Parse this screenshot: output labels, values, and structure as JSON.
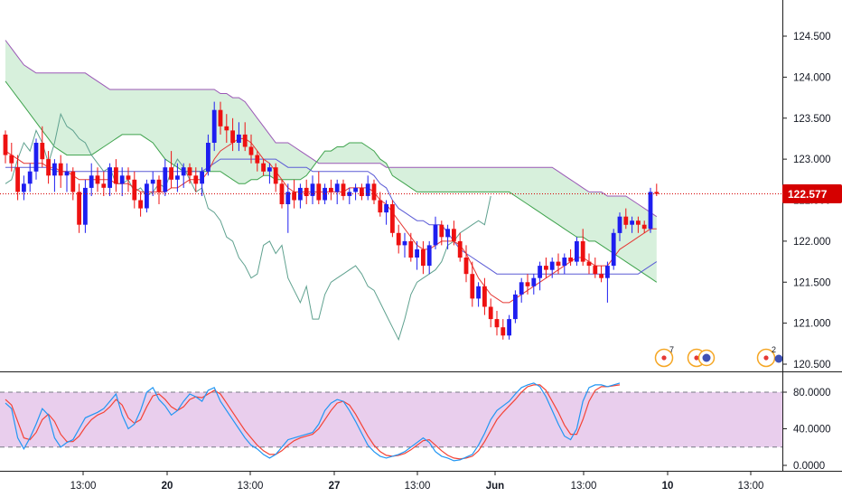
{
  "price_axis": {
    "ticks": [
      "124.500",
      "124.000",
      "123.500",
      "123.000",
      "122.500",
      "122.000",
      "121.500",
      "121.000",
      "120.500"
    ],
    "last_price": "122.577",
    "last_price_color": "#d50000"
  },
  "oscillator_axis": {
    "ticks": [
      "80.0000",
      "40.0000",
      "0.0000"
    ]
  },
  "time_axis": {
    "labels": [
      "13:00",
      "20",
      "13:00",
      "27",
      "13:00",
      "Jun",
      "13:00",
      "10",
      "13:00"
    ]
  },
  "events": [
    {
      "icon": "event-marker-icon",
      "count": "7"
    },
    {
      "icon": "event-marker-icon",
      "count": ""
    },
    {
      "icon": "event-marker-icon",
      "count": "2"
    }
  ],
  "colors": {
    "bull": "#1e1ef0",
    "bear": "#ee1111",
    "cloud_fill": "#b7e4bf",
    "cloud_upper": "#9b59b6",
    "cloud_lower": "#3fa34d",
    "tenkan": "#e53935",
    "kijun": "#5c5cd6",
    "chikou": "#5fa18f",
    "stoch_k": "#2196f3",
    "stoch_d": "#f44336",
    "stoch_band": "#e1bee7"
  },
  "chart_data": {
    "type": "candlestick",
    "price_range": [
      120.45,
      124.8
    ],
    "oscillator_range": [
      -3,
      101
    ],
    "oscillator_levels": [
      80,
      20
    ],
    "candles": [
      [
        123.3,
        123.35,
        122.95,
        123.05
      ],
      [
        123.05,
        123.2,
        122.85,
        122.95
      ],
      [
        122.9,
        123.05,
        122.5,
        122.6
      ],
      [
        122.6,
        122.8,
        122.5,
        122.7
      ],
      [
        122.7,
        122.95,
        122.6,
        122.85
      ],
      [
        122.85,
        123.25,
        122.75,
        123.2
      ],
      [
        123.2,
        123.4,
        122.9,
        123.0
      ],
      [
        123.0,
        123.1,
        122.7,
        122.8
      ],
      [
        122.8,
        123.0,
        122.6,
        122.95
      ],
      [
        122.95,
        123.05,
        122.65,
        122.8
      ],
      [
        122.8,
        122.95,
        122.6,
        122.85
      ],
      [
        122.85,
        122.9,
        122.5,
        122.6
      ],
      [
        122.6,
        122.7,
        122.1,
        122.2
      ],
      [
        122.2,
        122.75,
        122.1,
        122.65
      ],
      [
        122.65,
        122.95,
        122.55,
        122.8
      ],
      [
        122.8,
        122.9,
        122.6,
        122.7
      ],
      [
        122.7,
        122.85,
        122.55,
        122.65
      ],
      [
        122.65,
        122.95,
        122.55,
        122.9
      ],
      [
        122.9,
        123.0,
        122.6,
        122.7
      ],
      [
        122.7,
        122.9,
        122.55,
        122.8
      ],
      [
        122.8,
        122.9,
        122.6,
        122.75
      ],
      [
        122.75,
        122.85,
        122.4,
        122.5
      ],
      [
        122.5,
        122.6,
        122.3,
        122.4
      ],
      [
        122.4,
        122.75,
        122.35,
        122.7
      ],
      [
        122.7,
        122.85,
        122.55,
        122.75
      ],
      [
        122.75,
        122.8,
        122.45,
        122.6
      ],
      [
        122.6,
        123.0,
        122.55,
        122.9
      ],
      [
        122.9,
        123.1,
        122.65,
        122.75
      ],
      [
        122.75,
        122.95,
        122.6,
        122.8
      ],
      [
        122.8,
        122.95,
        122.65,
        122.9
      ],
      [
        122.9,
        122.95,
        122.7,
        122.8
      ],
      [
        122.8,
        122.9,
        122.6,
        122.7
      ],
      [
        122.7,
        122.9,
        122.55,
        122.85
      ],
      [
        122.85,
        123.3,
        122.8,
        123.2
      ],
      [
        123.2,
        123.7,
        123.1,
        123.6
      ],
      [
        123.6,
        123.7,
        123.3,
        123.4
      ],
      [
        123.4,
        123.55,
        123.2,
        123.35
      ],
      [
        123.35,
        123.5,
        123.1,
        123.2
      ],
      [
        123.2,
        123.45,
        123.1,
        123.3
      ],
      [
        123.3,
        123.45,
        123.1,
        123.15
      ],
      [
        123.15,
        123.3,
        122.95,
        123.05
      ],
      [
        123.05,
        123.1,
        122.85,
        122.95
      ],
      [
        122.95,
        123.0,
        122.8,
        122.85
      ],
      [
        122.85,
        122.95,
        122.7,
        122.9
      ],
      [
        122.9,
        122.95,
        122.6,
        122.7
      ],
      [
        122.7,
        122.75,
        122.4,
        122.45
      ],
      [
        122.45,
        122.7,
        122.1,
        122.6
      ],
      [
        122.6,
        122.75,
        122.4,
        122.5
      ],
      [
        122.5,
        122.7,
        122.4,
        122.65
      ],
      [
        122.65,
        122.75,
        122.45,
        122.55
      ],
      [
        122.55,
        122.8,
        122.45,
        122.7
      ],
      [
        122.7,
        122.85,
        122.45,
        122.5
      ],
      [
        122.5,
        122.7,
        122.45,
        122.65
      ],
      [
        122.65,
        122.75,
        122.5,
        122.6
      ],
      [
        122.6,
        122.75,
        122.45,
        122.7
      ],
      [
        122.7,
        122.75,
        122.5,
        122.55
      ],
      [
        122.55,
        122.65,
        122.45,
        122.6
      ],
      [
        122.6,
        122.7,
        122.5,
        122.65
      ],
      [
        122.65,
        122.7,
        122.5,
        122.55
      ],
      [
        122.55,
        122.8,
        122.5,
        122.7
      ],
      [
        122.7,
        122.75,
        122.45,
        122.5
      ],
      [
        122.5,
        122.6,
        122.3,
        122.35
      ],
      [
        122.35,
        122.5,
        122.2,
        122.45
      ],
      [
        122.45,
        122.5,
        122.05,
        122.1
      ],
      [
        122.1,
        122.2,
        121.85,
        121.95
      ],
      [
        121.95,
        122.1,
        121.8,
        122.0
      ],
      [
        122.0,
        122.1,
        121.75,
        121.8
      ],
      [
        121.8,
        122.0,
        121.65,
        121.9
      ],
      [
        121.9,
        122.0,
        121.6,
        121.7
      ],
      [
        121.7,
        122.0,
        121.6,
        121.95
      ],
      [
        121.95,
        122.3,
        121.9,
        122.2
      ],
      [
        122.2,
        122.25,
        121.95,
        122.05
      ],
      [
        122.05,
        122.2,
        121.9,
        122.15
      ],
      [
        122.15,
        122.25,
        121.95,
        122.0
      ],
      [
        122.0,
        122.1,
        121.75,
        121.8
      ],
      [
        121.8,
        121.95,
        121.5,
        121.6
      ],
      [
        121.6,
        121.75,
        121.2,
        121.3
      ],
      [
        121.3,
        121.5,
        121.2,
        121.45
      ],
      [
        121.45,
        121.55,
        121.1,
        121.2
      ],
      [
        121.2,
        121.3,
        120.95,
        121.05
      ],
      [
        121.05,
        121.15,
        120.85,
        120.95
      ],
      [
        120.95,
        121.05,
        120.8,
        120.85
      ],
      [
        120.85,
        121.1,
        120.8,
        121.05
      ],
      [
        121.05,
        121.4,
        121.0,
        121.35
      ],
      [
        121.35,
        121.55,
        121.25,
        121.5
      ],
      [
        121.5,
        121.6,
        121.35,
        121.45
      ],
      [
        121.45,
        121.6,
        121.35,
        121.55
      ],
      [
        121.55,
        121.75,
        121.4,
        121.7
      ],
      [
        121.7,
        121.8,
        121.55,
        121.65
      ],
      [
        121.65,
        121.8,
        121.55,
        121.75
      ],
      [
        121.75,
        121.85,
        121.6,
        121.7
      ],
      [
        121.7,
        121.85,
        121.6,
        121.8
      ],
      [
        121.8,
        121.9,
        121.7,
        121.75
      ],
      [
        121.75,
        122.05,
        121.7,
        122.0
      ],
      [
        122.0,
        122.15,
        121.7,
        121.75
      ],
      [
        121.75,
        121.85,
        121.6,
        121.7
      ],
      [
        121.7,
        121.8,
        121.55,
        121.6
      ],
      [
        121.6,
        121.7,
        121.5,
        121.55
      ],
      [
        121.55,
        121.75,
        121.25,
        121.7
      ],
      [
        121.7,
        122.15,
        121.65,
        122.1
      ],
      [
        122.1,
        122.35,
        122.0,
        122.3
      ],
      [
        122.3,
        122.4,
        122.15,
        122.2
      ],
      [
        122.2,
        122.3,
        122.1,
        122.25
      ],
      [
        122.25,
        122.3,
        122.1,
        122.2
      ],
      [
        122.2,
        122.25,
        122.1,
        122.15
      ],
      [
        122.15,
        122.65,
        122.1,
        122.6
      ],
      [
        122.6,
        122.7,
        122.55,
        122.577
      ]
    ],
    "tenkan": [
      123.1,
      123.05,
      123.0,
      122.95,
      122.95,
      122.95,
      122.95,
      122.9,
      122.9,
      122.85,
      122.85,
      122.8,
      122.75,
      122.75,
      122.75,
      122.75,
      122.75,
      122.75,
      122.7,
      122.7,
      122.7,
      122.65,
      122.6,
      122.6,
      122.6,
      122.6,
      122.6,
      122.65,
      122.65,
      122.7,
      122.75,
      122.75,
      122.75,
      122.85,
      123.0,
      123.1,
      123.15,
      123.2,
      123.25,
      123.25,
      123.2,
      123.1,
      123.0,
      122.95,
      122.85,
      122.75,
      122.65,
      122.6,
      122.6,
      122.6,
      122.6,
      122.6,
      122.6,
      122.6,
      122.6,
      122.6,
      122.65,
      122.65,
      122.65,
      122.65,
      122.6,
      122.5,
      122.45,
      122.35,
      122.25,
      122.15,
      122.05,
      121.95,
      121.9,
      121.9,
      121.95,
      122.0,
      122.0,
      122.0,
      121.95,
      121.85,
      121.7,
      121.55,
      121.45,
      121.35,
      121.3,
      121.25,
      121.25,
      121.3,
      121.35,
      121.4,
      121.45,
      121.5,
      121.55,
      121.6,
      121.65,
      121.7,
      121.75,
      121.8,
      121.8,
      121.75,
      121.7,
      121.7,
      121.7,
      121.8,
      121.9,
      121.95,
      122.0,
      122.05,
      122.1,
      122.15,
      122.15
    ],
    "kijun": [
      122.9,
      122.9,
      122.9,
      122.9,
      122.9,
      122.9,
      122.9,
      122.9,
      122.85,
      122.85,
      122.85,
      122.85,
      122.85,
      122.85,
      122.85,
      122.85,
      122.85,
      122.85,
      122.85,
      122.85,
      122.85,
      122.85,
      122.85,
      122.85,
      122.85,
      122.85,
      122.85,
      122.85,
      122.85,
      122.85,
      122.85,
      122.85,
      122.85,
      122.9,
      122.95,
      123.0,
      123.0,
      123.0,
      123.0,
      123.0,
      123.0,
      123.0,
      123.0,
      123.0,
      123.0,
      122.95,
      122.9,
      122.9,
      122.9,
      122.9,
      122.85,
      122.85,
      122.85,
      122.85,
      122.85,
      122.85,
      122.85,
      122.85,
      122.85,
      122.85,
      122.8,
      122.7,
      122.65,
      122.5,
      122.4,
      122.35,
      122.3,
      122.25,
      122.25,
      122.2,
      122.2,
      122.2,
      122.1,
      122.0,
      121.9,
      121.85,
      121.8,
      121.75,
      121.7,
      121.65,
      121.6,
      121.6,
      121.6,
      121.6,
      121.6,
      121.6,
      121.6,
      121.6,
      121.6,
      121.6,
      121.6,
      121.6,
      121.6,
      121.6,
      121.6,
      121.6,
      121.6,
      121.6,
      121.6,
      121.6,
      121.6,
      121.6,
      121.6,
      121.6,
      121.65,
      121.7,
      121.75
    ],
    "cloud_upper": [
      124.45,
      124.35,
      124.25,
      124.15,
      124.1,
      124.05,
      124.05,
      124.05,
      124.05,
      124.05,
      124.05,
      124.05,
      124.05,
      124.05,
      124.0,
      123.95,
      123.9,
      123.85,
      123.85,
      123.85,
      123.85,
      123.85,
      123.85,
      123.85,
      123.85,
      123.85,
      123.85,
      123.85,
      123.85,
      123.85,
      123.85,
      123.85,
      123.85,
      123.85,
      123.85,
      123.8,
      123.8,
      123.75,
      123.75,
      123.7,
      123.6,
      123.5,
      123.4,
      123.3,
      123.2,
      123.2,
      123.2,
      123.15,
      123.1,
      123.05,
      123.0,
      122.95,
      122.95,
      122.95,
      122.95,
      122.95,
      122.95,
      122.95,
      122.95,
      122.95,
      122.95,
      122.95,
      122.9,
      122.9,
      122.9,
      122.9,
      122.9,
      122.9,
      122.9,
      122.9,
      122.9,
      122.9,
      122.9,
      122.9,
      122.9,
      122.9,
      122.9,
      122.9,
      122.9,
      122.9,
      122.9,
      122.9,
      122.9,
      122.9,
      122.9,
      122.9,
      122.9,
      122.9,
      122.9,
      122.9,
      122.85,
      122.8,
      122.75,
      122.7,
      122.65,
      122.6,
      122.6,
      122.6,
      122.55,
      122.55,
      122.55,
      122.55,
      122.5,
      122.45,
      122.4,
      122.35,
      122.3
    ],
    "cloud_lower": [
      123.95,
      123.85,
      123.75,
      123.65,
      123.55,
      123.45,
      123.35,
      123.25,
      123.15,
      123.1,
      123.05,
      123.05,
      123.05,
      123.05,
      123.05,
      123.1,
      123.15,
      123.2,
      123.25,
      123.3,
      123.3,
      123.3,
      123.3,
      123.25,
      123.2,
      123.1,
      123.0,
      122.95,
      122.9,
      122.85,
      122.85,
      122.85,
      122.85,
      122.85,
      122.85,
      122.85,
      122.8,
      122.75,
      122.7,
      122.7,
      122.75,
      122.75,
      122.8,
      122.8,
      122.75,
      122.75,
      122.75,
      122.75,
      122.75,
      122.8,
      122.9,
      123.0,
      123.1,
      123.1,
      123.15,
      123.15,
      123.2,
      123.2,
      123.2,
      123.15,
      123.1,
      123.0,
      122.95,
      122.8,
      122.75,
      122.7,
      122.65,
      122.6,
      122.6,
      122.6,
      122.6,
      122.6,
      122.6,
      122.6,
      122.6,
      122.6,
      122.6,
      122.6,
      122.6,
      122.6,
      122.6,
      122.6,
      122.6,
      122.55,
      122.5,
      122.45,
      122.4,
      122.35,
      122.3,
      122.25,
      122.2,
      122.15,
      122.1,
      122.05,
      122.05,
      122.0,
      122.0,
      121.95,
      121.9,
      121.85,
      121.8,
      121.75,
      121.7,
      121.65,
      121.6,
      121.55,
      121.5
    ],
    "chikou": [
      122.7,
      122.75,
      123.0,
      123.2,
      123.1,
      123.35,
      123.2,
      122.95,
      123.2,
      123.55,
      123.4,
      123.35,
      123.25,
      123.2,
      123.05,
      122.95,
      122.85,
      122.9,
      122.7,
      122.7,
      122.75,
      122.6,
      122.65,
      122.55,
      122.6,
      122.7,
      122.65,
      122.85,
      123.0,
      122.9,
      122.75,
      122.6,
      122.65,
      122.4,
      122.35,
      122.25,
      122.05,
      122.0,
      121.8,
      121.7,
      121.55,
      121.6,
      121.95,
      122.0,
      121.85,
      121.95,
      121.55,
      121.4,
      121.25,
      121.45,
      121.05,
      121.05,
      121.35,
      121.5,
      121.55,
      121.6,
      121.65,
      121.7,
      121.6,
      121.45,
      121.4,
      121.25,
      121.1,
      120.95,
      120.8,
      121.05,
      121.35,
      121.5,
      121.55,
      121.6,
      121.65,
      121.75,
      121.95,
      122.0,
      122.1,
      122.15,
      122.2,
      122.25,
      122.2,
      122.55
    ],
    "stoch_k": [
      68,
      62,
      30,
      18,
      30,
      45,
      62,
      55,
      30,
      20,
      25,
      28,
      40,
      52,
      55,
      58,
      62,
      70,
      78,
      55,
      40,
      45,
      60,
      80,
      85,
      72,
      65,
      55,
      60,
      70,
      78,
      75,
      70,
      82,
      85,
      70,
      60,
      50,
      40,
      30,
      22,
      18,
      12,
      8,
      12,
      20,
      28,
      30,
      32,
      34,
      36,
      45,
      60,
      68,
      72,
      70,
      60,
      48,
      35,
      22,
      15,
      10,
      8,
      10,
      12,
      15,
      20,
      25,
      30,
      25,
      15,
      10,
      8,
      5,
      6,
      9,
      12,
      22,
      35,
      50,
      60,
      65,
      70,
      78,
      85,
      88,
      90,
      86,
      75,
      60,
      45,
      32,
      28,
      40,
      70,
      85,
      88,
      88,
      86,
      88,
      90
    ],
    "stoch_d": [
      72,
      66,
      48,
      30,
      28,
      36,
      50,
      56,
      48,
      34,
      26,
      26,
      32,
      42,
      50,
      55,
      58,
      64,
      72,
      66,
      52,
      46,
      50,
      64,
      76,
      78,
      72,
      64,
      60,
      64,
      72,
      75,
      74,
      78,
      82,
      78,
      68,
      58,
      48,
      38,
      30,
      22,
      16,
      12,
      12,
      16,
      22,
      27,
      30,
      32,
      34,
      40,
      50,
      60,
      68,
      70,
      66,
      56,
      44,
      32,
      22,
      15,
      11,
      10,
      11,
      13,
      17,
      22,
      27,
      28,
      22,
      16,
      11,
      8,
      7,
      8,
      10,
      16,
      26,
      38,
      50,
      58,
      65,
      72,
      80,
      86,
      88,
      88,
      82,
      70,
      58,
      44,
      34,
      34,
      50,
      70,
      82,
      86,
      86,
      87,
      88
    ]
  }
}
